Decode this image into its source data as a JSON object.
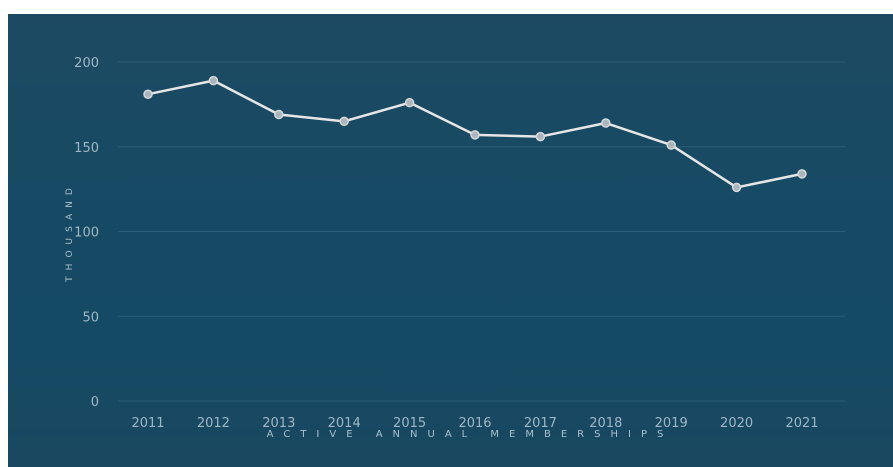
{
  "chart_data": {
    "type": "line",
    "x": [
      "2011",
      "2012",
      "2013",
      "2014",
      "2015",
      "2016",
      "2017",
      "2018",
      "2019",
      "2020",
      "2021"
    ],
    "series": [
      {
        "values": [
          181,
          189,
          169,
          165,
          176,
          157,
          156,
          164,
          151,
          126,
          134
        ]
      }
    ],
    "ylabel": "THOUSAND",
    "xlabel": "ACTIVE ANNUAL MEMBERSHIPS",
    "yticks": [
      "0",
      "50",
      "100",
      "150",
      "200"
    ],
    "ylim": [
      0,
      200
    ],
    "grid": true,
    "colors": {
      "background": "#174a63",
      "line": "#e6e6e6",
      "point": "#a9b6bd",
      "tick": "#9fb7c4"
    }
  }
}
